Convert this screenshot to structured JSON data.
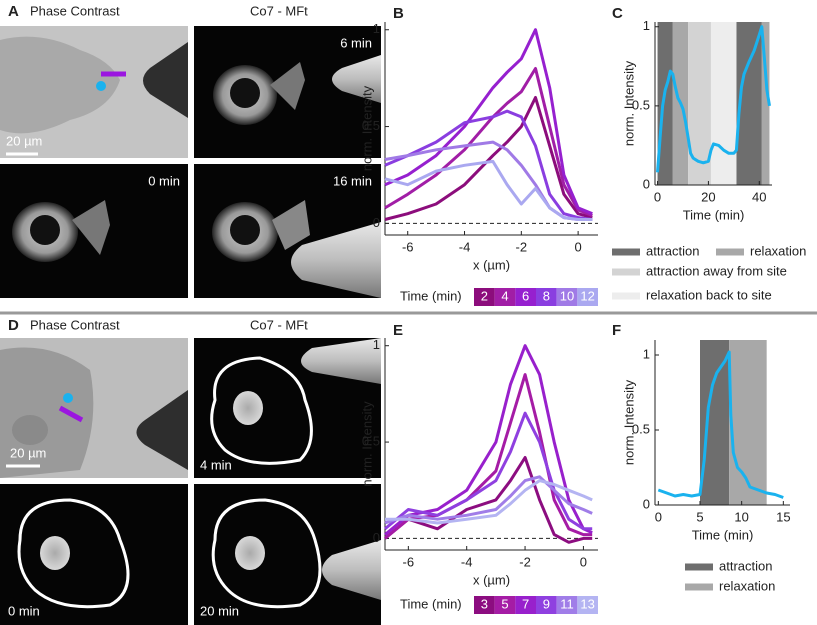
{
  "panels": {
    "A": {
      "label": "A",
      "header_left": "Phase Contrast",
      "header_right": "Co7 - MFt",
      "times": [
        "6 min",
        "0 min",
        "16 min"
      ],
      "scale_bar": "20 µm"
    },
    "D": {
      "label": "D",
      "header_left": "Phase Contrast",
      "header_right": "Co7 - MFt",
      "times": [
        "4 min",
        "0 min",
        "20 min"
      ],
      "scale_bar": "20 µm"
    }
  },
  "chart_data": [
    {
      "type": "line",
      "label": "B",
      "ylabel": "norm. Intensity",
      "xlabel": "x (µm)",
      "legend_title": "Time (min)",
      "x": [
        -6.8,
        -6,
        -5,
        -4,
        -3,
        -2.5,
        -2,
        -1.5,
        -1,
        -0.5,
        0,
        0.5
      ],
      "series": [
        {
          "name": "2",
          "color": "#8c0d7c",
          "values": [
            0.02,
            0.05,
            0.1,
            0.2,
            0.35,
            0.42,
            0.5,
            0.65,
            0.4,
            0.15,
            0.05,
            0.03
          ]
        },
        {
          "name": "4",
          "color": "#a11ea6",
          "values": [
            0.08,
            0.15,
            0.25,
            0.38,
            0.55,
            0.62,
            0.68,
            0.8,
            0.5,
            0.2,
            0.07,
            0.04
          ]
        },
        {
          "name": "6",
          "color": "#9620cf",
          "values": [
            0.2,
            0.25,
            0.35,
            0.5,
            0.7,
            0.78,
            0.85,
            1.0,
            0.7,
            0.25,
            0.08,
            0.05
          ]
        },
        {
          "name": "8",
          "color": "#8a3ee0",
          "values": [
            0.3,
            0.35,
            0.42,
            0.52,
            0.55,
            0.58,
            0.55,
            0.4,
            0.15,
            0.05,
            0.03,
            0.02
          ]
        },
        {
          "name": "10",
          "color": "#a07ae6",
          "values": [
            0.33,
            0.35,
            0.38,
            0.4,
            0.42,
            0.38,
            0.3,
            0.2,
            0.08,
            0.03,
            0.02,
            0.02
          ]
        },
        {
          "name": "12",
          "color": "#aaa8f0",
          "values": [
            0.23,
            0.2,
            0.27,
            0.3,
            0.32,
            0.2,
            0.1,
            0.18,
            0.08,
            0.03,
            0.02,
            0.02
          ]
        }
      ],
      "reference_line": 0,
      "xlim": [
        -6.8,
        0.7
      ],
      "ylim": [
        -0.06,
        1.04
      ],
      "xticks": [
        -6,
        -4,
        -2,
        0
      ],
      "yticks": [
        0,
        0.5,
        1
      ]
    },
    {
      "type": "line",
      "label": "C",
      "ylabel": "norm. Intensity",
      "xlabel": "Time (min)",
      "color": "#1ab2ee",
      "x": [
        0,
        1,
        2,
        3,
        4,
        5,
        6,
        7,
        8,
        9,
        10,
        11,
        12,
        13,
        14,
        16,
        18,
        20,
        21,
        22,
        24,
        26,
        28,
        30,
        31,
        32,
        33,
        34,
        36,
        38,
        40,
        41,
        42,
        43,
        44
      ],
      "values": [
        0.08,
        0.3,
        0.5,
        0.6,
        0.65,
        0.72,
        0.7,
        0.62,
        0.55,
        0.52,
        0.48,
        0.4,
        0.3,
        0.2,
        0.17,
        0.15,
        0.14,
        0.15,
        0.22,
        0.26,
        0.25,
        0.22,
        0.2,
        0.2,
        0.22,
        0.45,
        0.62,
        0.7,
        0.78,
        0.85,
        0.95,
        1.0,
        0.8,
        0.6,
        0.5
      ],
      "shades": [
        {
          "name": "attraction",
          "color": "#6e6e6e",
          "spans": [
            [
              0,
              6
            ],
            [
              31,
              41
            ]
          ]
        },
        {
          "name": "relaxation",
          "color": "#a8a8a8",
          "spans": [
            [
              6,
              12
            ],
            [
              41,
              44
            ]
          ]
        },
        {
          "name": "attraction away from site",
          "color": "#d3d3d3",
          "spans": [
            [
              12,
              21
            ]
          ]
        },
        {
          "name": "relaxation back to site",
          "color": "#ededed",
          "spans": [
            [
              21,
              31
            ]
          ]
        }
      ],
      "xlim": [
        -1,
        45
      ],
      "ylim": [
        0,
        1.03
      ],
      "xticks": [
        0,
        20,
        40
      ],
      "yticks": [
        0,
        0.5,
        1
      ]
    },
    {
      "type": "line",
      "label": "E",
      "ylabel": "norm. Intensity",
      "xlabel": "x (µm)",
      "legend_title": "Time (min)",
      "x": [
        -6.8,
        -6,
        -5,
        -4,
        -3,
        -2.5,
        -2,
        -1.5,
        -1,
        -0.5,
        0,
        0.3
      ],
      "series": [
        {
          "name": "3",
          "color": "#8c0d80",
          "values": [
            0,
            0.1,
            0.05,
            0.15,
            0.2,
            0.3,
            0.42,
            0.2,
            0.02,
            -0.02,
            0,
            0
          ]
        },
        {
          "name": "5",
          "color": "#a51ca5",
          "values": [
            0,
            0.1,
            0.12,
            0.2,
            0.35,
            0.6,
            0.85,
            0.55,
            0.2,
            0.05,
            0.02,
            0.02
          ]
        },
        {
          "name": "7",
          "color": "#9820cc",
          "values": [
            0.02,
            0.12,
            0.15,
            0.25,
            0.5,
            0.8,
            1.0,
            0.85,
            0.5,
            0.2,
            0.05,
            0.03
          ]
        },
        {
          "name": "9",
          "color": "#8f40e0",
          "values": [
            0.05,
            0.15,
            0.12,
            0.2,
            0.3,
            0.45,
            0.65,
            0.5,
            0.25,
            0.1,
            0.05,
            0.05
          ]
        },
        {
          "name": "11",
          "color": "#a07de8",
          "values": [
            0.08,
            0.12,
            0.1,
            0.12,
            0.15,
            0.22,
            0.3,
            0.32,
            0.25,
            0.18,
            0.15,
            0.13
          ]
        },
        {
          "name": "13",
          "color": "#b4b4f2",
          "values": [
            0.1,
            0.1,
            0.08,
            0.1,
            0.12,
            0.18,
            0.25,
            0.3,
            0.28,
            0.25,
            0.22,
            0.2
          ]
        }
      ],
      "reference_line": 0,
      "xlim": [
        -6.8,
        0.5
      ],
      "ylim": [
        -0.06,
        1.04
      ],
      "xticks": [
        -6,
        -4,
        -2,
        0
      ],
      "yticks": [
        0,
        0.5,
        1
      ]
    },
    {
      "type": "line",
      "label": "F",
      "ylabel": "norm. Intensity",
      "xlabel": "Time (min)",
      "color": "#1ab2ee",
      "x": [
        0,
        1,
        2,
        3,
        4,
        5,
        5.5,
        6,
        6.5,
        7,
        7.5,
        8,
        8.5,
        8.7,
        9,
        9.5,
        10,
        10.5,
        11,
        12,
        13,
        14,
        15
      ],
      "values": [
        0.1,
        0.08,
        0.06,
        0.07,
        0.06,
        0.07,
        0.3,
        0.65,
        0.8,
        0.88,
        0.92,
        0.96,
        1.02,
        0.6,
        0.35,
        0.25,
        0.22,
        0.18,
        0.12,
        0.1,
        0.08,
        0.07,
        0.05
      ],
      "shades": [
        {
          "name": "attraction",
          "color": "#6e6e6e",
          "spans": [
            [
              5,
              8.5
            ]
          ]
        },
        {
          "name": "relaxation",
          "color": "#a8a8a8",
          "spans": [
            [
              8.5,
              13
            ]
          ]
        }
      ],
      "xlim": [
        -0.4,
        15.8
      ],
      "ylim": [
        0,
        1.1
      ],
      "xticks": [
        0,
        5,
        10,
        15
      ],
      "yticks": [
        0,
        0.5,
        1
      ]
    }
  ]
}
